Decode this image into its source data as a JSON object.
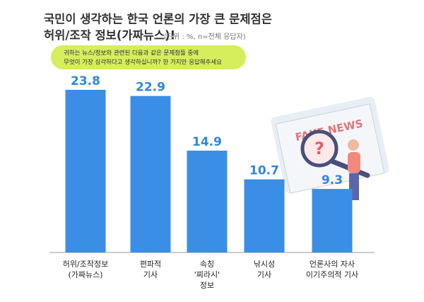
{
  "chart_data": {
    "type": "bar",
    "title": [
      "국민이 생각하는 한국 언론의 가장 큰 문제점은",
      "허위/조작 정보(가짜뉴스)!"
    ],
    "subtitle": "(단위 : %, n=전체 응답자)",
    "question": [
      "귀하는 뉴스/정보와 관련된 다음과 같은 문제점들 중에",
      "무엇이 가장 심각하다고 생각하십니까? 한 가지만 응답해주세요"
    ],
    "illustration_text": "FAKE NEWS",
    "categories": [
      [
        "허위/조작정보",
        "(가짜뉴스)"
      ],
      [
        "편파적",
        "기사"
      ],
      [
        "속칭",
        "'찌라시'",
        "정보"
      ],
      [
        "낚시성",
        "기사"
      ],
      [
        "언론사의 자사",
        "이기주의적 기사"
      ]
    ],
    "values": [
      23.8,
      22.9,
      14.9,
      10.7,
      9.3
    ],
    "color": "#3a8ee6"
  }
}
